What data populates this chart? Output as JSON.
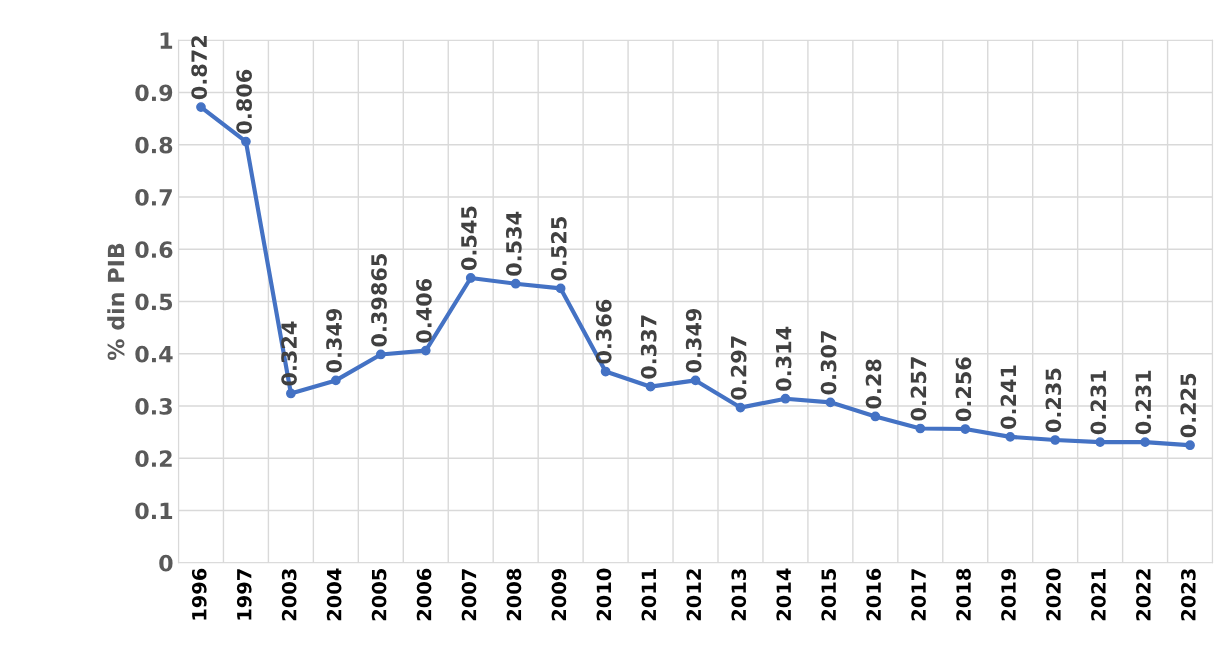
{
  "chart_data": {
    "type": "line",
    "ylabel": "% din PIB",
    "categories": [
      "1996",
      "1997",
      "2003",
      "2004",
      "2005",
      "2006",
      "2007",
      "2008",
      "2009",
      "2010",
      "2011",
      "2012",
      "2013",
      "2014",
      "2015",
      "2016",
      "2017",
      "2018",
      "2019",
      "2020",
      "2021",
      "2022",
      "2023"
    ],
    "series": [
      {
        "color": "#4472c4",
        "values": [
          0.872,
          0.806,
          0.324,
          0.349,
          0.39865,
          0.406,
          0.545,
          0.534,
          0.525,
          0.366,
          0.337,
          0.349,
          0.297,
          0.314,
          0.307,
          0.28,
          0.257,
          0.256,
          0.241,
          0.235,
          0.231,
          0.231,
          0.225
        ]
      }
    ],
    "ylim": [
      0,
      1
    ],
    "yticks": [
      0,
      0.1,
      0.2,
      0.3,
      0.4,
      0.5,
      0.6,
      0.7,
      0.8,
      0.9,
      1
    ],
    "grid": true,
    "marker": "circle",
    "line_style": "solid",
    "data_labels": true
  }
}
